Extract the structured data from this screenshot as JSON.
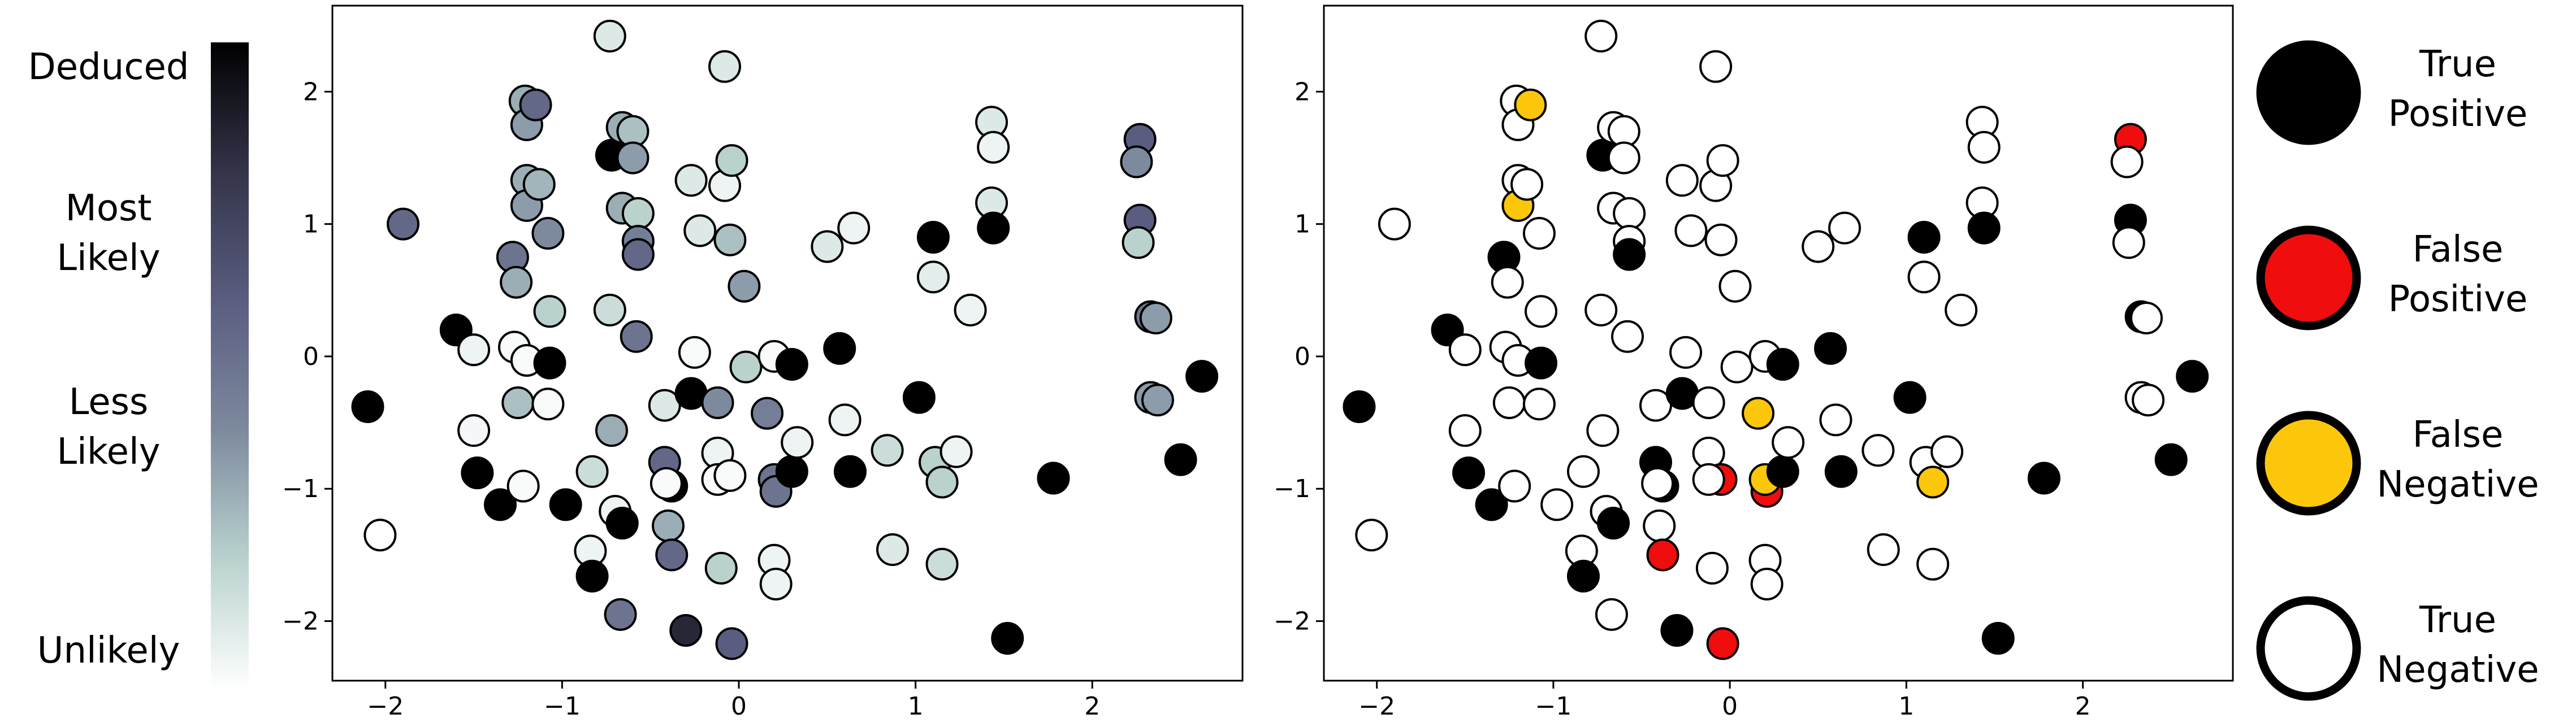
{
  "colorbar": {
    "labels": [
      {
        "text": "Deduced"
      },
      {
        "text": "Most\nLikely"
      },
      {
        "text": "Less\nLikely"
      },
      {
        "text": "Unlikely"
      }
    ],
    "colors": [
      "#ffffff",
      "#b9d2ce",
      "#7d8a9e",
      "#5a5d80",
      "#34344a",
      "#000000"
    ]
  },
  "legend": {
    "items": [
      {
        "label": "True\nPositive",
        "color": "#000000"
      },
      {
        "label": "False\nPositive",
        "color": "#ef0d0d"
      },
      {
        "label": "False\nNegative",
        "color": "#fcc70a"
      },
      {
        "label": "True\nNegative",
        "color": "#ffffff"
      }
    ]
  },
  "chart_data": [
    {
      "type": "scatter",
      "title": "",
      "xlabel": "",
      "ylabel": "",
      "xlim": [
        -2.3,
        2.85
      ],
      "ylim": [
        -2.45,
        2.65
      ],
      "xticks": [
        -2,
        -1,
        0,
        1,
        2
      ],
      "yticks": [
        -2,
        -1,
        0,
        1,
        2
      ],
      "color_encoding": "likelihood 0 (Unlikely, white) to 1 (Deduced, black)",
      "points": [
        {
          "x": -2.1,
          "y": -0.38,
          "v": 1.0
        },
        {
          "x": -2.03,
          "y": -1.35,
          "v": 0.0
        },
        {
          "x": -1.9,
          "y": 1.0,
          "v": 0.55
        },
        {
          "x": -1.6,
          "y": 0.2,
          "v": 1.0
        },
        {
          "x": -1.5,
          "y": 0.05,
          "v": 0.05
        },
        {
          "x": -1.5,
          "y": -0.56,
          "v": 0.03
        },
        {
          "x": -1.48,
          "y": -0.88,
          "v": 1.0
        },
        {
          "x": -1.35,
          "y": -1.12,
          "v": 1.0
        },
        {
          "x": -1.28,
          "y": 0.75,
          "v": 0.5
        },
        {
          "x": -1.26,
          "y": 0.56,
          "v": 0.3
        },
        {
          "x": -1.27,
          "y": 0.07,
          "v": 0.02
        },
        {
          "x": -1.25,
          "y": -0.35,
          "v": 0.25
        },
        {
          "x": -1.22,
          "y": -0.98,
          "v": 0.02
        },
        {
          "x": -1.21,
          "y": 1.93,
          "v": 0.3
        },
        {
          "x": -1.2,
          "y": 1.75,
          "v": 0.35
        },
        {
          "x": -1.2,
          "y": 1.33,
          "v": 0.3
        },
        {
          "x": -1.2,
          "y": 1.14,
          "v": 0.35
        },
        {
          "x": -1.2,
          "y": -0.03,
          "v": 0.02
        },
        {
          "x": -1.15,
          "y": 1.9,
          "v": 0.55
        },
        {
          "x": -1.13,
          "y": 1.3,
          "v": 0.28
        },
        {
          "x": -1.07,
          "y": 0.34,
          "v": 0.2
        },
        {
          "x": -1.08,
          "y": 0.93,
          "v": 0.4
        },
        {
          "x": -1.07,
          "y": -0.05,
          "v": 1.0
        },
        {
          "x": -1.08,
          "y": -0.36,
          "v": 0.02
        },
        {
          "x": -0.98,
          "y": -1.12,
          "v": 1.0
        },
        {
          "x": -0.73,
          "y": 2.42,
          "v": 0.1
        },
        {
          "x": -0.72,
          "y": 1.52,
          "v": 1.0
        },
        {
          "x": -0.66,
          "y": 1.73,
          "v": 0.3
        },
        {
          "x": -0.66,
          "y": 1.12,
          "v": 0.3
        },
        {
          "x": -0.6,
          "y": 1.7,
          "v": 0.25
        },
        {
          "x": -0.6,
          "y": 1.5,
          "v": 0.35
        },
        {
          "x": -0.57,
          "y": 1.08,
          "v": 0.2
        },
        {
          "x": -0.57,
          "y": 0.87,
          "v": 0.45
        },
        {
          "x": -0.57,
          "y": 0.77,
          "v": 0.55
        },
        {
          "x": -0.73,
          "y": 0.35,
          "v": 0.15
        },
        {
          "x": -0.58,
          "y": 0.15,
          "v": 0.5
        },
        {
          "x": -0.72,
          "y": -0.56,
          "v": 0.3
        },
        {
          "x": -0.83,
          "y": -0.87,
          "v": 0.15
        },
        {
          "x": -0.7,
          "y": -1.17,
          "v": 0.05
        },
        {
          "x": -0.66,
          "y": -1.26,
          "v": 1.0
        },
        {
          "x": -0.84,
          "y": -1.47,
          "v": 0.05
        },
        {
          "x": -0.83,
          "y": -1.66,
          "v": 1.0
        },
        {
          "x": -0.67,
          "y": -1.95,
          "v": 0.5
        },
        {
          "x": -0.42,
          "y": -0.37,
          "v": 0.1
        },
        {
          "x": -0.42,
          "y": -0.8,
          "v": 0.55
        },
        {
          "x": -0.38,
          "y": -0.98,
          "v": 1.0
        },
        {
          "x": -0.41,
          "y": -0.96,
          "v": 0.02
        },
        {
          "x": -0.4,
          "y": -1.28,
          "v": 0.3
        },
        {
          "x": -0.38,
          "y": -1.5,
          "v": 0.55
        },
        {
          "x": -0.3,
          "y": -2.07,
          "v": 0.85
        },
        {
          "x": -0.25,
          "y": 0.03,
          "v": 0.02
        },
        {
          "x": -0.27,
          "y": -0.28,
          "v": 1.0
        },
        {
          "x": -0.27,
          "y": 1.33,
          "v": 0.1
        },
        {
          "x": -0.22,
          "y": 0.95,
          "v": 0.1
        },
        {
          "x": -0.12,
          "y": -0.35,
          "v": 0.4
        },
        {
          "x": -0.12,
          "y": -0.73,
          "v": 0.05
        },
        {
          "x": -0.12,
          "y": -0.93,
          "v": 0.02
        },
        {
          "x": -0.1,
          "y": -1.6,
          "v": 0.2
        },
        {
          "x": -0.08,
          "y": 2.19,
          "v": 0.1
        },
        {
          "x": -0.08,
          "y": 1.29,
          "v": 0.05
        },
        {
          "x": -0.04,
          "y": 1.48,
          "v": 0.2
        },
        {
          "x": -0.05,
          "y": 0.88,
          "v": 0.25
        },
        {
          "x": -0.05,
          "y": -0.9,
          "v": 0.02
        },
        {
          "x": -0.04,
          "y": -2.17,
          "v": 0.6
        },
        {
          "x": 0.03,
          "y": 0.53,
          "v": 0.35
        },
        {
          "x": 0.04,
          "y": -0.08,
          "v": 0.2
        },
        {
          "x": 0.16,
          "y": -0.43,
          "v": 0.45
        },
        {
          "x": 0.2,
          "y": 0.0,
          "v": 0.02
        },
        {
          "x": 0.2,
          "y": -0.93,
          "v": 0.5
        },
        {
          "x": 0.21,
          "y": -1.02,
          "v": 0.5
        },
        {
          "x": 0.2,
          "y": -1.54,
          "v": 0.05
        },
        {
          "x": 0.21,
          "y": -1.72,
          "v": 0.05
        },
        {
          "x": 0.3,
          "y": -0.06,
          "v": 1.0
        },
        {
          "x": 0.3,
          "y": -0.87,
          "v": 1.0
        },
        {
          "x": 0.33,
          "y": -0.65,
          "v": 0.05
        },
        {
          "x": 0.5,
          "y": 0.83,
          "v": 0.1
        },
        {
          "x": 0.57,
          "y": 0.06,
          "v": 1.0
        },
        {
          "x": 0.6,
          "y": -0.48,
          "v": 0.05
        },
        {
          "x": 0.63,
          "y": -0.87,
          "v": 1.0
        },
        {
          "x": 0.65,
          "y": 0.97,
          "v": 0.05
        },
        {
          "x": 0.84,
          "y": -0.71,
          "v": 0.15
        },
        {
          "x": 0.87,
          "y": -1.46,
          "v": 0.1
        },
        {
          "x": 1.02,
          "y": -0.31,
          "v": 1.0
        },
        {
          "x": 1.1,
          "y": 0.9,
          "v": 1.0
        },
        {
          "x": 1.1,
          "y": 0.6,
          "v": 0.08
        },
        {
          "x": 1.11,
          "y": -0.8,
          "v": 0.2
        },
        {
          "x": 1.15,
          "y": -0.95,
          "v": 0.2
        },
        {
          "x": 1.15,
          "y": -1.57,
          "v": 0.15
        },
        {
          "x": 1.23,
          "y": -0.72,
          "v": 0.05
        },
        {
          "x": 1.31,
          "y": 0.35,
          "v": 0.05
        },
        {
          "x": 1.43,
          "y": 1.77,
          "v": 0.1
        },
        {
          "x": 1.44,
          "y": 1.58,
          "v": 0.05
        },
        {
          "x": 1.43,
          "y": 1.16,
          "v": 0.1
        },
        {
          "x": 1.44,
          "y": 0.97,
          "v": 1.0
        },
        {
          "x": 1.52,
          "y": -2.13,
          "v": 1.0
        },
        {
          "x": 1.78,
          "y": -0.92,
          "v": 1.0
        },
        {
          "x": 2.27,
          "y": 1.64,
          "v": 0.6
        },
        {
          "x": 2.25,
          "y": 1.47,
          "v": 0.4
        },
        {
          "x": 2.27,
          "y": 1.03,
          "v": 0.6
        },
        {
          "x": 2.26,
          "y": 0.86,
          "v": 0.2
        },
        {
          "x": 2.33,
          "y": 0.3,
          "v": 0.5
        },
        {
          "x": 2.36,
          "y": 0.29,
          "v": 0.35
        },
        {
          "x": 2.33,
          "y": -0.31,
          "v": 0.35
        },
        {
          "x": 2.37,
          "y": -0.33,
          "v": 0.35
        },
        {
          "x": 2.5,
          "y": -0.78,
          "v": 1.0
        },
        {
          "x": 2.62,
          "y": -0.15,
          "v": 1.0
        }
      ]
    },
    {
      "type": "scatter",
      "title": "",
      "xlabel": "",
      "ylabel": "",
      "xlim": [
        -2.3,
        2.85
      ],
      "ylim": [
        -2.45,
        2.65
      ],
      "xticks": [
        -2,
        -1,
        0,
        1,
        2
      ],
      "yticks": [
        -2,
        -1,
        0,
        1,
        2
      ],
      "categories": [
        "TP",
        "FP",
        "FN",
        "TN"
      ],
      "points": [
        {
          "x": -2.1,
          "y": -0.38,
          "c": "TP"
        },
        {
          "x": -2.03,
          "y": -1.35,
          "c": "TN"
        },
        {
          "x": -1.9,
          "y": 1.0,
          "c": "TN"
        },
        {
          "x": -1.6,
          "y": 0.2,
          "c": "TP"
        },
        {
          "x": -1.5,
          "y": 0.05,
          "c": "TN"
        },
        {
          "x": -1.5,
          "y": -0.56,
          "c": "TN"
        },
        {
          "x": -1.48,
          "y": -0.88,
          "c": "TP"
        },
        {
          "x": -1.35,
          "y": -1.12,
          "c": "TP"
        },
        {
          "x": -1.28,
          "y": 0.75,
          "c": "TP"
        },
        {
          "x": -1.26,
          "y": 0.56,
          "c": "TN"
        },
        {
          "x": -1.27,
          "y": 0.07,
          "c": "TN"
        },
        {
          "x": -1.25,
          "y": -0.35,
          "c": "TN"
        },
        {
          "x": -1.22,
          "y": -0.98,
          "c": "TN"
        },
        {
          "x": -1.21,
          "y": 1.93,
          "c": "TN"
        },
        {
          "x": -1.2,
          "y": 1.75,
          "c": "TN"
        },
        {
          "x": -1.2,
          "y": 1.33,
          "c": "TN"
        },
        {
          "x": -1.2,
          "y": 1.14,
          "c": "FN"
        },
        {
          "x": -1.2,
          "y": -0.03,
          "c": "TN"
        },
        {
          "x": -1.13,
          "y": 1.9,
          "c": "FN"
        },
        {
          "x": -1.15,
          "y": 1.3,
          "c": "TN"
        },
        {
          "x": -1.07,
          "y": 0.34,
          "c": "TN"
        },
        {
          "x": -1.08,
          "y": 0.93,
          "c": "TN"
        },
        {
          "x": -1.07,
          "y": -0.05,
          "c": "TP"
        },
        {
          "x": -1.08,
          "y": -0.36,
          "c": "TN"
        },
        {
          "x": -0.98,
          "y": -1.12,
          "c": "TN"
        },
        {
          "x": -0.73,
          "y": 2.42,
          "c": "TN"
        },
        {
          "x": -0.72,
          "y": 1.52,
          "c": "TP"
        },
        {
          "x": -0.66,
          "y": 1.73,
          "c": "TN"
        },
        {
          "x": -0.66,
          "y": 1.12,
          "c": "TN"
        },
        {
          "x": -0.6,
          "y": 1.7,
          "c": "TN"
        },
        {
          "x": -0.6,
          "y": 1.5,
          "c": "TN"
        },
        {
          "x": -0.57,
          "y": 1.08,
          "c": "TN"
        },
        {
          "x": -0.57,
          "y": 0.87,
          "c": "TN"
        },
        {
          "x": -0.57,
          "y": 0.77,
          "c": "TP"
        },
        {
          "x": -0.73,
          "y": 0.35,
          "c": "TN"
        },
        {
          "x": -0.58,
          "y": 0.15,
          "c": "TN"
        },
        {
          "x": -0.72,
          "y": -0.56,
          "c": "TN"
        },
        {
          "x": -0.83,
          "y": -0.87,
          "c": "TN"
        },
        {
          "x": -0.7,
          "y": -1.17,
          "c": "TN"
        },
        {
          "x": -0.66,
          "y": -1.26,
          "c": "TP"
        },
        {
          "x": -0.84,
          "y": -1.47,
          "c": "TN"
        },
        {
          "x": -0.83,
          "y": -1.66,
          "c": "TP"
        },
        {
          "x": -0.67,
          "y": -1.95,
          "c": "TN"
        },
        {
          "x": -0.42,
          "y": -0.37,
          "c": "TN"
        },
        {
          "x": -0.42,
          "y": -0.8,
          "c": "TP"
        },
        {
          "x": -0.38,
          "y": -0.98,
          "c": "TP"
        },
        {
          "x": -0.41,
          "y": -0.96,
          "c": "TN"
        },
        {
          "x": -0.4,
          "y": -1.28,
          "c": "TN"
        },
        {
          "x": -0.38,
          "y": -1.5,
          "c": "FP"
        },
        {
          "x": -0.3,
          "y": -2.07,
          "c": "TP"
        },
        {
          "x": -0.25,
          "y": 0.03,
          "c": "TN"
        },
        {
          "x": -0.27,
          "y": -0.28,
          "c": "TP"
        },
        {
          "x": -0.27,
          "y": 1.33,
          "c": "TN"
        },
        {
          "x": -0.22,
          "y": 0.95,
          "c": "TN"
        },
        {
          "x": -0.12,
          "y": -0.35,
          "c": "TN"
        },
        {
          "x": -0.12,
          "y": -0.73,
          "c": "TN"
        },
        {
          "x": -0.05,
          "y": -0.93,
          "c": "FP"
        },
        {
          "x": -0.12,
          "y": -0.93,
          "c": "TN"
        },
        {
          "x": -0.1,
          "y": -1.6,
          "c": "TN"
        },
        {
          "x": -0.08,
          "y": 2.19,
          "c": "TN"
        },
        {
          "x": -0.08,
          "y": 1.29,
          "c": "TN"
        },
        {
          "x": -0.04,
          "y": 1.48,
          "c": "TN"
        },
        {
          "x": -0.05,
          "y": 0.88,
          "c": "TN"
        },
        {
          "x": -0.04,
          "y": -2.17,
          "c": "FP"
        },
        {
          "x": 0.03,
          "y": 0.53,
          "c": "TN"
        },
        {
          "x": 0.04,
          "y": -0.08,
          "c": "TN"
        },
        {
          "x": 0.16,
          "y": -0.43,
          "c": "FN"
        },
        {
          "x": 0.2,
          "y": 0.0,
          "c": "TN"
        },
        {
          "x": 0.21,
          "y": -1.02,
          "c": "FP"
        },
        {
          "x": 0.2,
          "y": -0.93,
          "c": "FN"
        },
        {
          "x": 0.2,
          "y": -1.54,
          "c": "TN"
        },
        {
          "x": 0.21,
          "y": -1.72,
          "c": "TN"
        },
        {
          "x": 0.3,
          "y": -0.06,
          "c": "TP"
        },
        {
          "x": 0.3,
          "y": -0.87,
          "c": "TP"
        },
        {
          "x": 0.33,
          "y": -0.65,
          "c": "TN"
        },
        {
          "x": 0.5,
          "y": 0.83,
          "c": "TN"
        },
        {
          "x": 0.57,
          "y": 0.06,
          "c": "TP"
        },
        {
          "x": 0.6,
          "y": -0.48,
          "c": "TN"
        },
        {
          "x": 0.63,
          "y": -0.87,
          "c": "TP"
        },
        {
          "x": 0.65,
          "y": 0.97,
          "c": "TN"
        },
        {
          "x": 0.84,
          "y": -0.71,
          "c": "TN"
        },
        {
          "x": 0.87,
          "y": -1.46,
          "c": "TN"
        },
        {
          "x": 1.02,
          "y": -0.31,
          "c": "TP"
        },
        {
          "x": 1.1,
          "y": 0.9,
          "c": "TP"
        },
        {
          "x": 1.1,
          "y": 0.6,
          "c": "TN"
        },
        {
          "x": 1.11,
          "y": -0.8,
          "c": "TN"
        },
        {
          "x": 1.15,
          "y": -0.95,
          "c": "FN"
        },
        {
          "x": 1.15,
          "y": -1.57,
          "c": "TN"
        },
        {
          "x": 1.23,
          "y": -0.72,
          "c": "TN"
        },
        {
          "x": 1.31,
          "y": 0.35,
          "c": "TN"
        },
        {
          "x": 1.43,
          "y": 1.77,
          "c": "TN"
        },
        {
          "x": 1.44,
          "y": 1.58,
          "c": "TN"
        },
        {
          "x": 1.43,
          "y": 1.16,
          "c": "TN"
        },
        {
          "x": 1.44,
          "y": 0.97,
          "c": "TP"
        },
        {
          "x": 1.52,
          "y": -2.13,
          "c": "TP"
        },
        {
          "x": 1.78,
          "y": -0.92,
          "c": "TP"
        },
        {
          "x": 2.27,
          "y": 1.64,
          "c": "FP"
        },
        {
          "x": 2.25,
          "y": 1.47,
          "c": "TN"
        },
        {
          "x": 2.27,
          "y": 1.03,
          "c": "TP"
        },
        {
          "x": 2.26,
          "y": 0.86,
          "c": "TN"
        },
        {
          "x": 2.33,
          "y": 0.3,
          "c": "TP"
        },
        {
          "x": 2.36,
          "y": 0.29,
          "c": "TN"
        },
        {
          "x": 2.33,
          "y": -0.31,
          "c": "TN"
        },
        {
          "x": 2.37,
          "y": -0.33,
          "c": "TN"
        },
        {
          "x": 2.5,
          "y": -0.78,
          "c": "TP"
        },
        {
          "x": 2.62,
          "y": -0.15,
          "c": "TP"
        }
      ]
    }
  ]
}
